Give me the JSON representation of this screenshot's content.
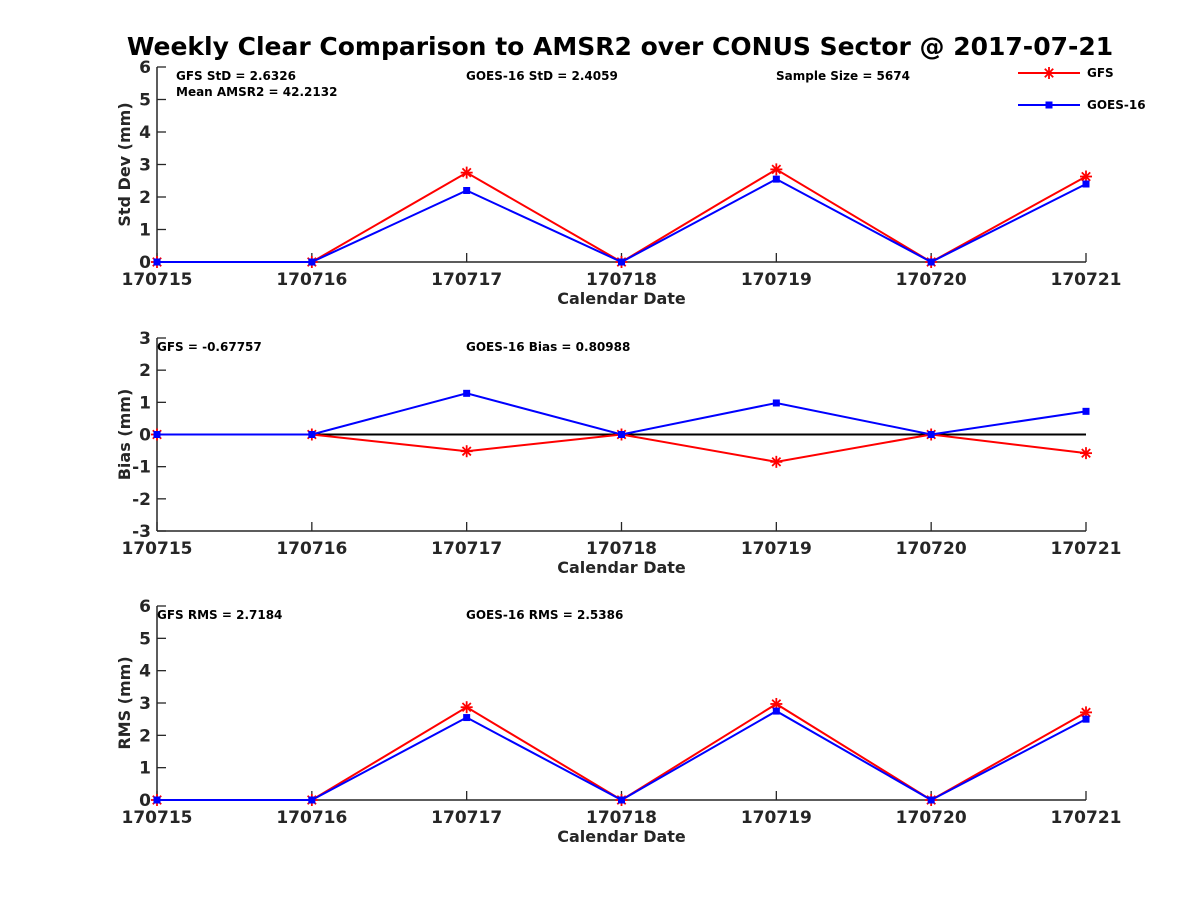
{
  "figure": {
    "title": "Weekly Clear Comparison to AMSR2 over CONUS Sector @ 2017-07-21"
  },
  "legend": {
    "placement": "top-right",
    "items": [
      {
        "label": "GFS",
        "color": "#ff0000",
        "marker": "asterisk"
      },
      {
        "label": "GOES-16",
        "color": "#0000ff",
        "marker": "square"
      }
    ]
  },
  "chart_data": [
    {
      "type": "line",
      "categories": [
        "170715",
        "170716",
        "170717",
        "170718",
        "170719",
        "170720",
        "170721"
      ],
      "xlabel": "Calendar Date",
      "ylabel": "Std Dev (mm)",
      "ylim": [
        0,
        6
      ],
      "yticks": [
        "0",
        "1",
        "2",
        "3",
        "4",
        "5",
        "6"
      ],
      "zero_line": false,
      "annotations": [
        "GFS StD = 2.6326",
        "Mean AMSR2 = 42.2132",
        "GOES-16 StD = 2.4059",
        "Sample Size = 5674"
      ],
      "series": [
        {
          "name": "GFS",
          "color": "#ff0000",
          "marker": "asterisk",
          "values": [
            0,
            0,
            2.75,
            0,
            2.85,
            0,
            2.63
          ]
        },
        {
          "name": "GOES-16",
          "color": "#0000ff",
          "marker": "square",
          "values": [
            0,
            0,
            2.2,
            0,
            2.55,
            0,
            2.4
          ]
        }
      ]
    },
    {
      "type": "line",
      "categories": [
        "170715",
        "170716",
        "170717",
        "170718",
        "170719",
        "170720",
        "170721"
      ],
      "xlabel": "Calendar Date",
      "ylabel": "Bias (mm)",
      "ylim": [
        -3,
        3
      ],
      "yticks": [
        "-3",
        "-2",
        "-1",
        "0",
        "1",
        "2",
        "3"
      ],
      "zero_line": true,
      "annotations": [
        "GFS = -0.67757",
        "GOES-16 Bias  = 0.80988"
      ],
      "series": [
        {
          "name": "GFS",
          "color": "#ff0000",
          "marker": "asterisk",
          "values": [
            0,
            0,
            -0.52,
            0,
            -0.85,
            0,
            -0.58
          ]
        },
        {
          "name": "GOES-16",
          "color": "#0000ff",
          "marker": "square",
          "values": [
            0,
            0,
            1.28,
            0,
            0.98,
            0,
            0.72
          ]
        }
      ]
    },
    {
      "type": "line",
      "categories": [
        "170715",
        "170716",
        "170717",
        "170718",
        "170719",
        "170720",
        "170721"
      ],
      "xlabel": "Calendar Date",
      "ylabel": "RMS (mm)",
      "ylim": [
        0,
        6
      ],
      "yticks": [
        "0",
        "1",
        "2",
        "3",
        "4",
        "5",
        "6"
      ],
      "zero_line": false,
      "annotations": [
        "GFS RMS = 2.7184",
        "GOES-16 RMS = 2.5386"
      ],
      "series": [
        {
          "name": "GFS",
          "color": "#ff0000",
          "marker": "asterisk",
          "values": [
            0,
            0,
            2.87,
            0,
            2.97,
            0,
            2.71
          ]
        },
        {
          "name": "GOES-16",
          "color": "#0000ff",
          "marker": "square",
          "values": [
            0,
            0,
            2.55,
            0,
            2.75,
            0,
            2.5
          ]
        }
      ]
    }
  ]
}
